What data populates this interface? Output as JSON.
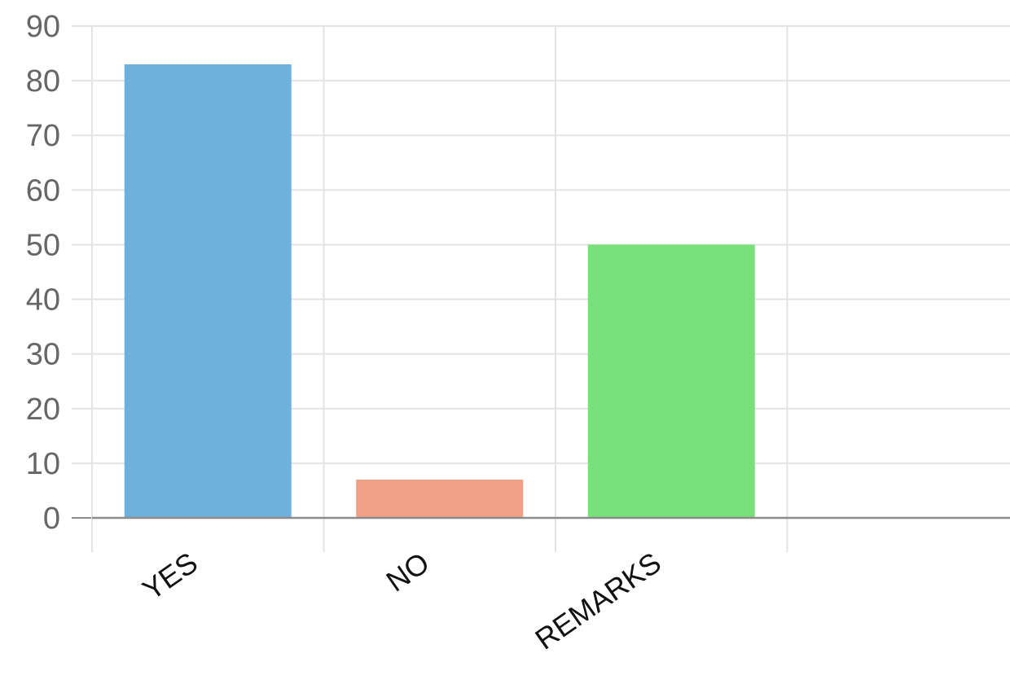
{
  "chart_data": {
    "type": "bar",
    "categories": [
      "YES",
      "NO",
      "REMARKS",
      ""
    ],
    "values": [
      83,
      7,
      50,
      null
    ],
    "colors": [
      "#6fb1dc",
      "#f0a084",
      "#78e078",
      null
    ],
    "ylim": [
      0,
      90
    ],
    "yticks": [
      0,
      10,
      20,
      30,
      40,
      50,
      60,
      70,
      80,
      90
    ],
    "grid": true,
    "grid_color": "#e3e3e3",
    "axis_color": "#8c8c8c",
    "legend": "none"
  }
}
